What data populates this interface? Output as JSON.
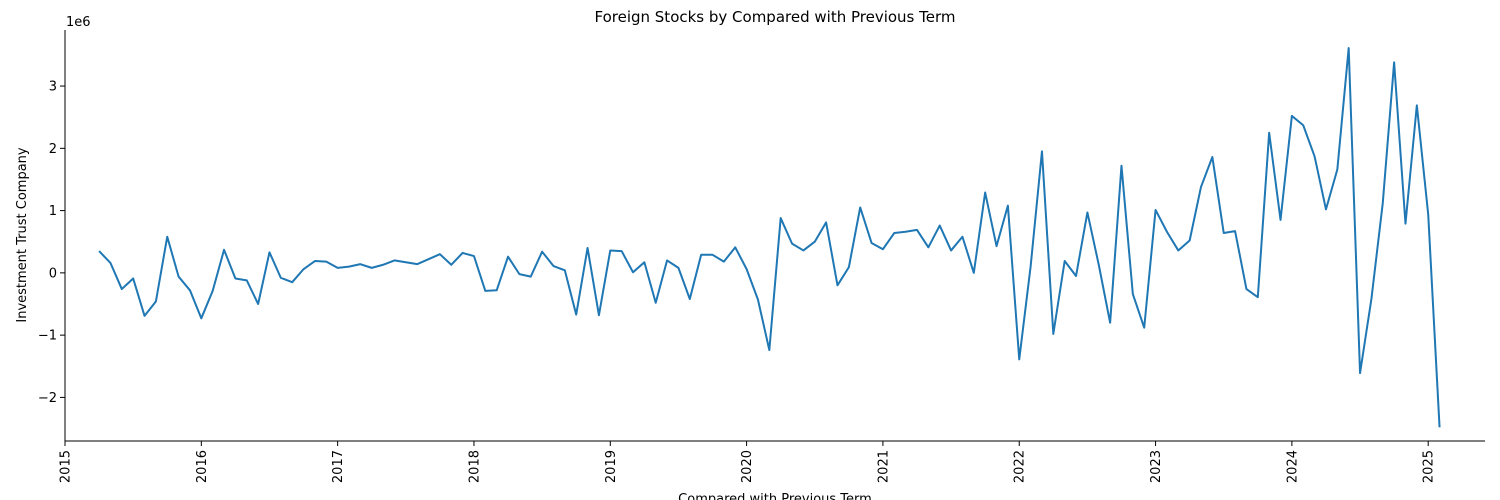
{
  "chart_data": {
    "type": "line",
    "title": "Foreign Stocks by Compared with Previous Term",
    "xlabel": "Compared with Previous Term",
    "ylabel": "Investment Trust Company",
    "y_multiplier_label": "1e6",
    "xlim": [
      "2015-01",
      "2025-06"
    ],
    "ylim": [
      -2.7,
      3.9
    ],
    "y_unit_scale": 1000000,
    "x_ticks": [
      "2015",
      "2016",
      "2017",
      "2018",
      "2019",
      "2020",
      "2021",
      "2022",
      "2023",
      "2024",
      "2025"
    ],
    "y_ticks": [
      -2,
      -1,
      0,
      1,
      2,
      3
    ],
    "y_tick_labels": [
      "−2",
      "−1",
      "0",
      "1",
      "2",
      "3"
    ],
    "grid": false,
    "color": "#1f77b4",
    "series": [
      {
        "x": [
          "2015-04",
          "2015-05",
          "2015-06",
          "2015-07",
          "2015-08",
          "2015-09",
          "2015-10",
          "2015-11",
          "2015-12",
          "2016-01",
          "2016-02",
          "2016-03",
          "2016-04",
          "2016-05",
          "2016-06",
          "2016-07",
          "2016-08",
          "2016-09",
          "2016-10",
          "2016-11",
          "2016-12",
          "2017-01",
          "2017-02",
          "2017-03",
          "2017-04",
          "2017-05",
          "2017-06",
          "2017-07",
          "2017-08",
          "2017-09",
          "2017-10",
          "2017-11",
          "2017-12",
          "2018-01",
          "2018-02",
          "2018-03",
          "2018-04",
          "2018-05",
          "2018-06",
          "2018-07",
          "2018-08",
          "2018-09",
          "2018-10",
          "2018-11",
          "2018-12",
          "2019-01",
          "2019-02",
          "2019-03",
          "2019-04",
          "2019-05",
          "2019-06",
          "2019-07",
          "2019-08",
          "2019-09",
          "2019-10",
          "2019-11",
          "2019-12",
          "2020-01",
          "2020-02",
          "2020-03",
          "2020-04",
          "2020-05",
          "2020-06",
          "2020-07",
          "2020-08",
          "2020-09",
          "2020-10",
          "2020-11",
          "2020-12",
          "2021-01",
          "2021-02",
          "2021-03",
          "2021-04",
          "2021-05",
          "2021-06",
          "2021-07",
          "2021-08",
          "2021-09",
          "2021-10",
          "2021-11",
          "2021-12",
          "2022-01",
          "2022-02",
          "2022-03",
          "2022-04",
          "2022-05",
          "2022-06",
          "2022-07",
          "2022-08",
          "2022-09",
          "2022-10",
          "2022-11",
          "2022-12",
          "2023-01",
          "2023-02",
          "2023-03",
          "2023-04",
          "2023-05",
          "2023-06",
          "2023-07",
          "2023-08",
          "2023-09",
          "2023-10",
          "2023-11",
          "2023-12",
          "2024-01",
          "2024-02",
          "2024-03",
          "2024-04",
          "2024-05",
          "2024-06",
          "2024-07",
          "2024-08",
          "2024-09",
          "2024-10",
          "2024-11",
          "2024-12",
          "2025-01",
          "2025-02"
        ],
        "values": [
          350000,
          160000,
          -260000,
          -90000,
          -690000,
          -460000,
          580000,
          -60000,
          -280000,
          -730000,
          -290000,
          370000,
          -90000,
          -120000,
          -500000,
          330000,
          -80000,
          -150000,
          60000,
          190000,
          180000,
          80000,
          100000,
          140000,
          80000,
          130000,
          200000,
          170000,
          140000,
          220000,
          300000,
          130000,
          320000,
          270000,
          -290000,
          -280000,
          260000,
          -20000,
          -60000,
          340000,
          110000,
          40000,
          -670000,
          400000,
          -680000,
          360000,
          350000,
          10000,
          170000,
          -480000,
          200000,
          80000,
          -420000,
          290000,
          290000,
          180000,
          410000,
          60000,
          -430000,
          -1240000,
          880000,
          470000,
          360000,
          500000,
          810000,
          -200000,
          90000,
          1050000,
          480000,
          380000,
          640000,
          660000,
          690000,
          410000,
          760000,
          360000,
          580000,
          0,
          1290000,
          430000,
          1080000,
          -1390000,
          100000,
          1950000,
          -980000,
          190000,
          -50000,
          970000,
          130000,
          -800000,
          1720000,
          -340000,
          -880000,
          1010000,
          660000,
          360000,
          520000,
          1380000,
          1860000,
          640000,
          670000,
          -260000,
          -390000,
          2250000,
          850000,
          2520000,
          2370000,
          1870000,
          1020000,
          1660000,
          3610000,
          -1610000,
          -420000,
          1120000,
          3380000,
          790000,
          2690000,
          940000,
          -2480000
        ]
      }
    ]
  }
}
